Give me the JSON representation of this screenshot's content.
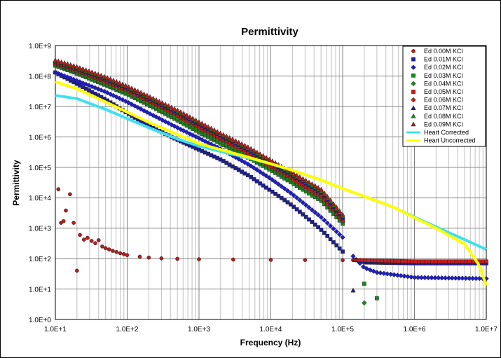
{
  "chart_data": {
    "type": "scatter",
    "title": "Permittivity",
    "xlabel": "Frequency (Hz)",
    "ylabel": "Permittivity",
    "x_scale": "log",
    "y_scale": "log",
    "xlim": [
      10,
      10000000
    ],
    "ylim": [
      1,
      1000000000
    ],
    "x_ticks": [
      "1.0E+1",
      "1.0E+2",
      "1.0E+3",
      "1.0E+4",
      "1.0E+5",
      "1.0E+6",
      "1.0E+7"
    ],
    "y_ticks": [
      "1.0E+0",
      "1.0E+1",
      "1.0E+2",
      "1.0E+3",
      "1.0E+4",
      "1.0E+5",
      "1.0E+6",
      "1.0E+7",
      "1.0E+8",
      "1.0E+9"
    ],
    "grid": true,
    "legend_position": "top-right",
    "series": [
      {
        "name": "Ed 0.00M KCl",
        "marker": "circle",
        "color": "#b41e1e",
        "points": [
          [
            11,
            19000
          ],
          [
            12,
            1500
          ],
          [
            13,
            1700
          ],
          [
            14,
            3800
          ],
          [
            16,
            13000
          ],
          [
            18,
            1500
          ],
          [
            20,
            40
          ],
          [
            22,
            600
          ],
          [
            25,
            420
          ],
          [
            28,
            480
          ],
          [
            32,
            380
          ],
          [
            36,
            320
          ],
          [
            40,
            400
          ],
          [
            45,
            250
          ],
          [
            50,
            220
          ],
          [
            56,
            200
          ],
          [
            63,
            180
          ],
          [
            71,
            165
          ],
          [
            80,
            150
          ],
          [
            90,
            140
          ],
          [
            100,
            130
          ],
          [
            150,
            115
          ],
          [
            200,
            108
          ],
          [
            300,
            102
          ],
          [
            500,
            98
          ],
          [
            1000,
            95
          ],
          [
            3000,
            93
          ],
          [
            10000,
            91
          ],
          [
            30000,
            90
          ],
          [
            100000,
            89
          ],
          [
            140000,
            89
          ],
          [
            170000,
            80
          ],
          [
            200000,
            82
          ],
          [
            300000,
            82
          ],
          [
            1000000,
            80
          ],
          [
            3000000,
            80
          ],
          [
            10000000,
            80
          ]
        ]
      },
      {
        "name": "Ed 0.01M KCl",
        "marker": "square",
        "color": "#1e1e96",
        "points": [
          [
            10,
            130000000
          ],
          [
            20,
            55000000
          ],
          [
            50,
            17000000
          ],
          [
            100,
            6000000
          ],
          [
            200,
            2300000
          ],
          [
            500,
            800000
          ],
          [
            1000,
            380000
          ],
          [
            2000,
            180000
          ],
          [
            5000,
            52000
          ],
          [
            10000,
            17000
          ],
          [
            20000,
            5500
          ],
          [
            50000,
            900
          ],
          [
            100000,
            170
          ],
          [
            150000,
            90
          ],
          [
            200000,
            75
          ],
          [
            1000000,
            70
          ],
          [
            10000000,
            70
          ]
        ]
      },
      {
        "name": "Ed 0.02M KCl",
        "marker": "diamond",
        "color": "#1e1ecc",
        "points": [
          [
            10,
            130000000
          ],
          [
            20,
            70000000
          ],
          [
            50,
            30000000
          ],
          [
            100,
            14000000
          ],
          [
            200,
            6000000
          ],
          [
            500,
            2000000
          ],
          [
            1000,
            900000
          ],
          [
            2000,
            400000
          ],
          [
            5000,
            120000
          ],
          [
            10000,
            42000
          ],
          [
            20000,
            13000
          ],
          [
            50000,
            2300
          ],
          [
            100000,
            500
          ],
          [
            140000,
            120
          ],
          [
            200000,
            50
          ],
          [
            300000,
            35
          ],
          [
            1000000,
            24
          ],
          [
            10000000,
            22
          ]
        ]
      },
      {
        "name": "Ed 0.03M KCl",
        "marker": "square",
        "color": "#1e8a1e",
        "points": [
          [
            10,
            220000000
          ],
          [
            20,
            120000000
          ],
          [
            50,
            50000000
          ],
          [
            100,
            25000000
          ],
          [
            200,
            11000000
          ],
          [
            500,
            3500000
          ],
          [
            1000,
            1400000
          ],
          [
            2000,
            600000
          ],
          [
            5000,
            200000
          ],
          [
            10000,
            80000
          ],
          [
            20000,
            30000
          ],
          [
            50000,
            8000
          ],
          [
            100000,
            1400
          ],
          [
            150000,
            90
          ],
          [
            200000,
            15
          ],
          [
            300000,
            5
          ]
        ]
      },
      {
        "name": "Ed 0.04M KCl",
        "marker": "diamond",
        "color": "#1e8a1e",
        "points": [
          [
            10,
            240000000
          ],
          [
            20,
            130000000
          ],
          [
            50,
            55000000
          ],
          [
            100,
            28000000
          ],
          [
            200,
            12500000
          ],
          [
            500,
            4000000
          ],
          [
            1000,
            1700000
          ],
          [
            2000,
            700000
          ],
          [
            5000,
            240000
          ],
          [
            10000,
            95000
          ],
          [
            20000,
            36000
          ],
          [
            50000,
            9500
          ],
          [
            100000,
            1600
          ],
          [
            150000,
            90
          ],
          [
            200000,
            3.5
          ]
        ]
      },
      {
        "name": "Ed 0.05M KCl",
        "marker": "square",
        "color": "#c81e1e",
        "points": [
          [
            10,
            260000000
          ],
          [
            20,
            150000000
          ],
          [
            50,
            65000000
          ],
          [
            100,
            33000000
          ],
          [
            200,
            15000000
          ],
          [
            500,
            5000000
          ],
          [
            1000,
            2000000
          ],
          [
            2000,
            850000
          ],
          [
            5000,
            280000
          ],
          [
            10000,
            110000
          ],
          [
            20000,
            42000
          ],
          [
            50000,
            11000
          ],
          [
            100000,
            1800
          ],
          [
            150000,
            90
          ],
          [
            1000000,
            80
          ],
          [
            10000000,
            80
          ]
        ]
      },
      {
        "name": "Ed 0.06M KCl",
        "marker": "diamond",
        "color": "#c81e1e",
        "points": [
          [
            10,
            280000000
          ],
          [
            20,
            160000000
          ],
          [
            50,
            72000000
          ],
          [
            100,
            36000000
          ],
          [
            200,
            16500000
          ],
          [
            500,
            5600000
          ],
          [
            1000,
            2300000
          ],
          [
            2000,
            950000
          ],
          [
            5000,
            320000
          ],
          [
            10000,
            125000
          ],
          [
            20000,
            48000
          ],
          [
            50000,
            13000
          ],
          [
            100000,
            2000
          ],
          [
            150000,
            90
          ]
        ]
      },
      {
        "name": "Ed 0.07M KCl",
        "marker": "triangle",
        "color": "#1e1e96",
        "points": [
          [
            10,
            300000000
          ],
          [
            20,
            175000000
          ],
          [
            50,
            80000000
          ],
          [
            100,
            40000000
          ],
          [
            200,
            18500000
          ],
          [
            500,
            6300000
          ],
          [
            1000,
            2600000
          ],
          [
            2000,
            1100000
          ],
          [
            5000,
            360000
          ],
          [
            10000,
            140000
          ],
          [
            20000,
            54000
          ],
          [
            50000,
            15000
          ],
          [
            100000,
            2200
          ],
          [
            140000,
            9
          ]
        ]
      },
      {
        "name": "Ed 0.08M KCl",
        "marker": "triangle",
        "color": "#1e8a1e",
        "points": [
          [
            10,
            310000000
          ],
          [
            20,
            185000000
          ],
          [
            50,
            86000000
          ],
          [
            100,
            43000000
          ],
          [
            200,
            20000000
          ],
          [
            500,
            6900000
          ],
          [
            1000,
            2900000
          ],
          [
            2000,
            1200000
          ],
          [
            5000,
            400000
          ],
          [
            10000,
            155000
          ],
          [
            20000,
            60000
          ],
          [
            50000,
            17000
          ],
          [
            100000,
            2500
          ],
          [
            150000,
            90
          ]
        ]
      },
      {
        "name": "Ed 0.09M KCl",
        "marker": "triangle",
        "color": "#b41e1e",
        "points": [
          [
            10,
            330000000
          ],
          [
            20,
            200000000
          ],
          [
            50,
            92000000
          ],
          [
            100,
            46000000
          ],
          [
            200,
            21500000
          ],
          [
            500,
            7500000
          ],
          [
            1000,
            3100000
          ],
          [
            2000,
            1300000
          ],
          [
            5000,
            440000
          ],
          [
            10000,
            170000
          ],
          [
            20000,
            66000
          ],
          [
            50000,
            19000
          ],
          [
            100000,
            2800
          ],
          [
            150000,
            90
          ]
        ]
      },
      {
        "name": "Heart Corrected",
        "marker": "line",
        "color": "#40e0f0",
        "points": [
          [
            10,
            23000000
          ],
          [
            20,
            18000000
          ],
          [
            50,
            8000000
          ],
          [
            100,
            4000000
          ],
          [
            200,
            2000000
          ],
          [
            500,
            850000
          ],
          [
            1000,
            500000
          ],
          [
            2000,
            330000
          ],
          [
            5000,
            200000
          ],
          [
            10000,
            130000
          ],
          [
            20000,
            80000
          ],
          [
            50000,
            38000
          ],
          [
            100000,
            20000
          ],
          [
            200000,
            11000
          ],
          [
            500000,
            5000
          ],
          [
            1000000,
            2300
          ],
          [
            2000000,
            1100
          ],
          [
            5000000,
            420
          ],
          [
            10000000,
            200
          ]
        ]
      },
      {
        "name": "Heart Uncorrected",
        "marker": "line",
        "color": "#ffff00",
        "points": [
          [
            10,
            65000000
          ],
          [
            20,
            38000000
          ],
          [
            50,
            14000000
          ],
          [
            100,
            6500000
          ],
          [
            200,
            3000000
          ],
          [
            500,
            1200000
          ],
          [
            1000,
            600000
          ],
          [
            2000,
            380000
          ],
          [
            5000,
            210000
          ],
          [
            10000,
            130000
          ],
          [
            20000,
            80000
          ],
          [
            50000,
            38000
          ],
          [
            100000,
            20000
          ],
          [
            200000,
            11000
          ],
          [
            500000,
            5000
          ],
          [
            1000000,
            2200
          ],
          [
            2000000,
            1000
          ],
          [
            5000000,
            300
          ],
          [
            8000000,
            60
          ],
          [
            10000000,
            13
          ]
        ]
      }
    ]
  }
}
